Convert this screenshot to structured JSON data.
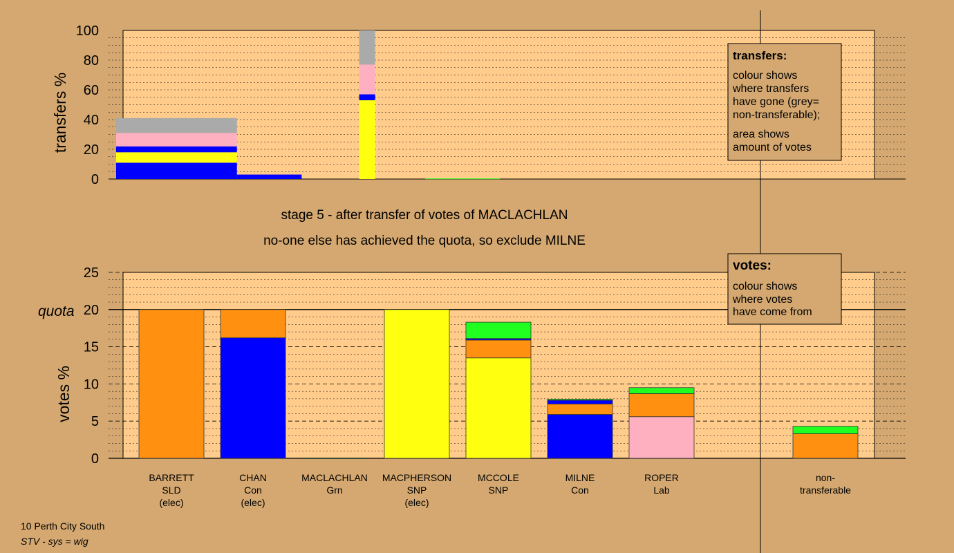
{
  "colors": {
    "background": "#D4A870",
    "plot_area": "#FFCC8C",
    "SLD": "#FF9010",
    "Con": "#0000FF",
    "SNP": "#FFFF10",
    "Lab": "#FFB0C0",
    "Grn": "#20FF20",
    "nontransferable": "#AAAAAA"
  },
  "stage": {
    "line1": "stage 5 - after transfer of votes of MACLACHLAN",
    "line2": "no-one else has achieved the quota, so exclude MILNE"
  },
  "transfers_legend": {
    "title": "transfers:",
    "lines_a": [
      "colour shows",
      "where transfers",
      "have gone (grey=",
      "non-transferable);"
    ],
    "lines_b": [
      "area shows",
      "amount of votes"
    ]
  },
  "votes_legend": {
    "title": "votes:",
    "lines": [
      "colour shows",
      "where votes",
      "have come from"
    ]
  },
  "footer": {
    "constituency": "10 Perth City South",
    "system": "STV - sys = wig"
  },
  "chart_data": [
    {
      "type": "bar",
      "name": "transfers",
      "ylabel": "transfers %",
      "ylim": [
        0,
        100
      ],
      "yticks": [
        "0",
        "20",
        "40",
        "60",
        "80",
        "100"
      ],
      "grid": true,
      "note": "stacked segments in order from bottom; color by party",
      "segments": [
        {
          "x0": 0,
          "x1": 41.6,
          "stack": [
            {
              "party": "Con",
              "value": 11
            },
            {
              "party": "SNP",
              "value": 7
            },
            {
              "party": "Con",
              "value": 4
            },
            {
              "party": "Lab",
              "value": 9
            },
            {
              "party": "nontransferable",
              "value": 10
            }
          ]
        },
        {
          "x0": 41.6,
          "x1": 63.9,
          "stack": [
            {
              "party": "Con",
              "value": 3
            }
          ]
        },
        {
          "x0": 83.7,
          "x1": 89.2,
          "stack": [
            {
              "party": "SNP",
              "value": 53
            },
            {
              "party": "Con",
              "value": 4
            },
            {
              "party": "Lab",
              "value": 20
            },
            {
              "party": "nontransferable",
              "value": 23
            }
          ]
        },
        {
          "x0": 106.5,
          "x1": 132.2,
          "stack": [
            {
              "party": "Grn",
              "value": 0.4
            }
          ]
        }
      ]
    },
    {
      "type": "bar",
      "name": "votes",
      "ylabel": "votes %",
      "ylim": [
        0,
        25
      ],
      "yticks": [
        "0",
        "5",
        "10",
        "15",
        "20",
        "25"
      ],
      "quota": 20,
      "quota_label": "quota",
      "grid": true,
      "candidates": [
        {
          "name": "BARRETT",
          "party": "SLD",
          "status": "(elec)",
          "stack": [
            {
              "party": "SLD",
              "value": 20
            }
          ]
        },
        {
          "name": "CHAN",
          "party": "Con",
          "status": "(elec)",
          "stack": [
            {
              "party": "Con",
              "value": 16.2
            },
            {
              "party": "SLD",
              "value": 3.8
            }
          ]
        },
        {
          "name": "MACLACHLAN",
          "party": "Grn",
          "status": "",
          "stack": [
            {
              "party": "Grn",
              "value": 0.05
            }
          ]
        },
        {
          "name": "MACPHERSON",
          "party": "SNP",
          "status": "(elec)",
          "stack": [
            {
              "party": "SNP",
              "value": 20
            }
          ]
        },
        {
          "name": "MCCOLE",
          "party": "SNP",
          "status": "",
          "stack": [
            {
              "party": "SNP",
              "value": 13.5
            },
            {
              "party": "SLD",
              "value": 2.4
            },
            {
              "party": "Con",
              "value": 0.2
            },
            {
              "party": "Grn",
              "value": 2.2
            }
          ]
        },
        {
          "name": "MILNE",
          "party": "Con",
          "status": "",
          "stack": [
            {
              "party": "Con",
              "value": 5.9
            },
            {
              "party": "SLD",
              "value": 1.4
            },
            {
              "party": "Con",
              "value": 0.5
            },
            {
              "party": "Grn",
              "value": 0.15
            }
          ]
        },
        {
          "name": "ROPER",
          "party": "Lab",
          "status": "",
          "stack": [
            {
              "party": "Lab",
              "value": 5.6
            },
            {
              "party": "SLD",
              "value": 3.1
            },
            {
              "party": "Grn",
              "value": 0.8
            }
          ]
        },
        {
          "name": "non-",
          "party": "transferable",
          "status": "",
          "stack": [
            {
              "party": "SLD",
              "value": 3.3
            },
            {
              "party": "Grn",
              "value": 1.0
            }
          ]
        }
      ]
    }
  ]
}
